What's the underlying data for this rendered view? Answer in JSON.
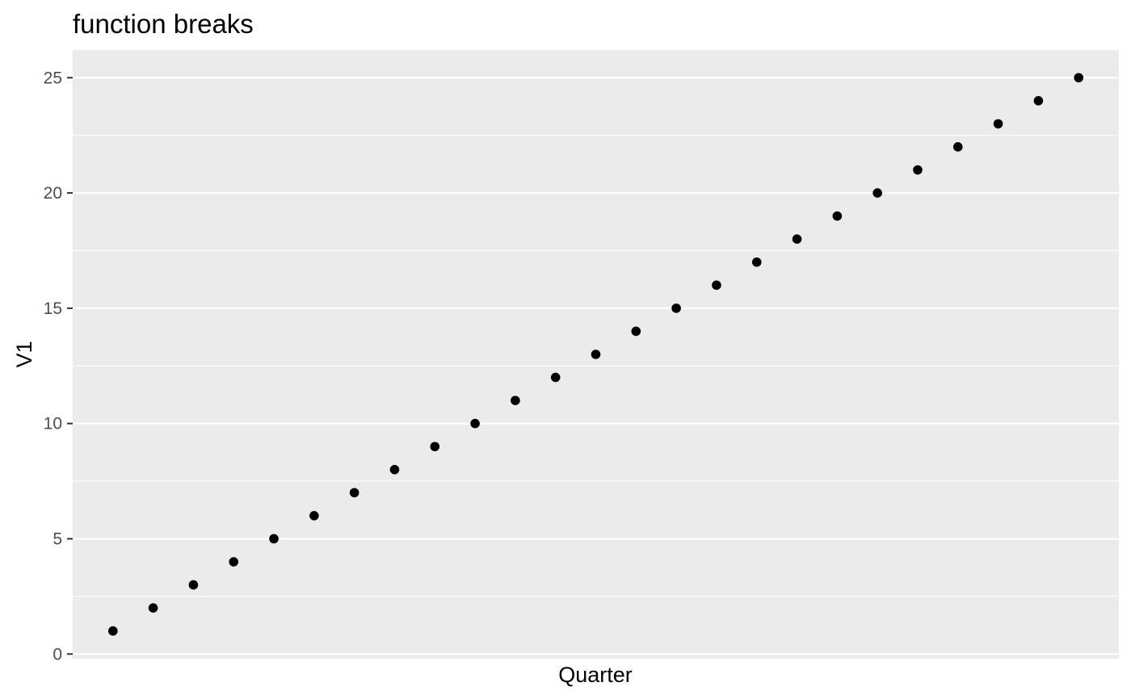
{
  "chart_data": {
    "type": "scatter",
    "title": "function breaks",
    "xlabel": "Quarter",
    "ylabel": "V1",
    "x": [
      1,
      2,
      3,
      4,
      5,
      6,
      7,
      8,
      9,
      10,
      11,
      12,
      13,
      14,
      15,
      16,
      17,
      18,
      19,
      20,
      21,
      22,
      23,
      24,
      25
    ],
    "y": [
      1,
      2,
      3,
      4,
      5,
      6,
      7,
      8,
      9,
      10,
      11,
      12,
      13,
      14,
      15,
      16,
      17,
      18,
      19,
      20,
      21,
      22,
      23,
      24,
      25
    ],
    "xlim": [
      0,
      26
    ],
    "ylim": [
      -0.2,
      26.2
    ],
    "yticks": [
      "0",
      "5",
      "10",
      "15",
      "20",
      "25"
    ],
    "xticks": [],
    "grid": true,
    "legend": "none",
    "colors": {
      "panel": "#ebebeb",
      "grid": "#ffffff",
      "point": "#000000",
      "tick": "#333333"
    }
  }
}
